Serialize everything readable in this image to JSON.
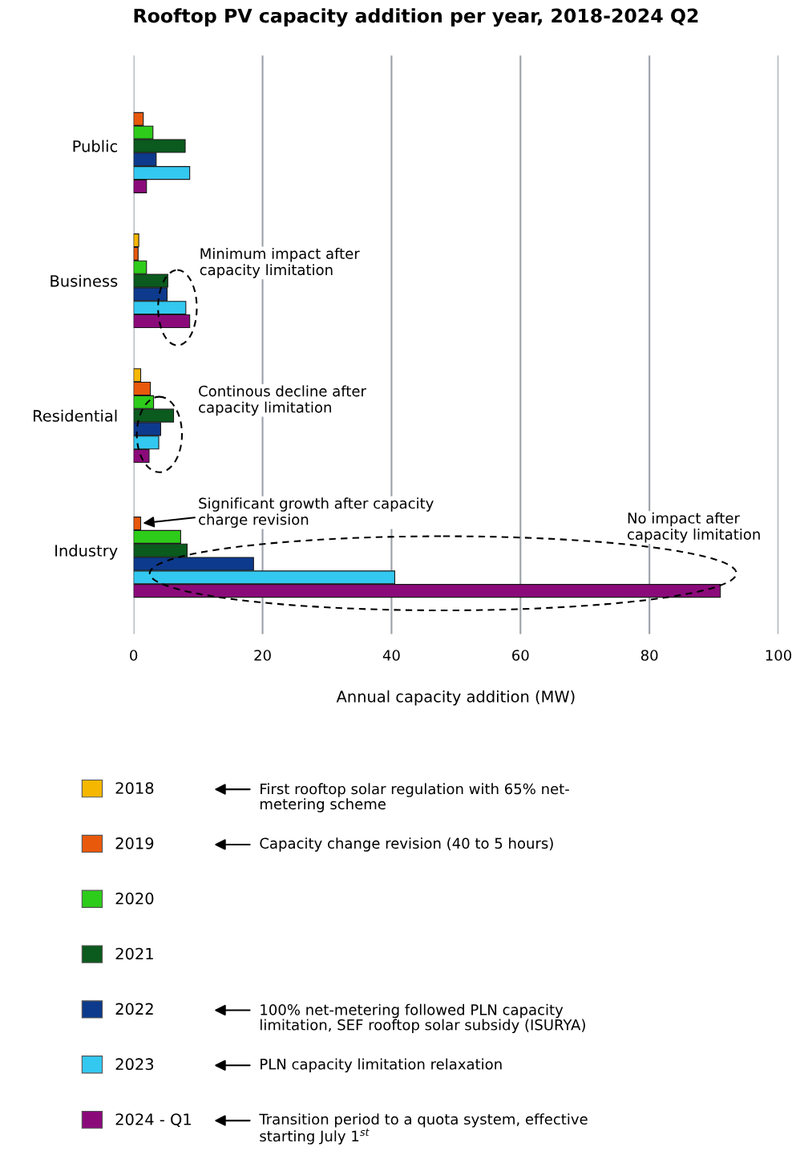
{
  "chart_data": {
    "type": "bar",
    "orientation": "horizontal",
    "title": "Rooftop PV capacity addition per year, 2018-2024 Q2",
    "xlabel": "Annual capacity addition (MW)",
    "categories": [
      "Public",
      "Business",
      "Residential",
      "Industry"
    ],
    "series": [
      {
        "name": "2018",
        "color": "#f5b700",
        "values": [
          null,
          0.8,
          1.1,
          null
        ]
      },
      {
        "name": "2019",
        "color": "#e8590c",
        "values": [
          1.5,
          0.7,
          2.6,
          1.1
        ]
      },
      {
        "name": "2020",
        "color": "#2ecc1a",
        "values": [
          3.0,
          2.0,
          3.1,
          7.3
        ]
      },
      {
        "name": "2021",
        "color": "#0b5a1e",
        "values": [
          8.0,
          5.3,
          6.2,
          8.3
        ]
      },
      {
        "name": "2022",
        "color": "#0d3a8c",
        "values": [
          3.5,
          5.2,
          4.2,
          18.6
        ]
      },
      {
        "name": "2023",
        "color": "#33c8f0",
        "values": [
          8.7,
          8.1,
          3.9,
          40.5
        ]
      },
      {
        "name": "2024 - Q1",
        "color": "#8b0a7a",
        "values": [
          2.0,
          8.7,
          2.4,
          91.0
        ]
      }
    ],
    "xlim": [
      0,
      100
    ],
    "xticks": [
      0,
      20,
      40,
      60,
      80,
      100
    ],
    "grid": "x",
    "legend": "bottom",
    "annotations": [
      "Minimum impact after\ncapacity limitation",
      "Continous decline after\ncapacity limitation",
      "Significant growth after capacity\ncharge revision",
      "No impact after\ncapacity limitation",
      "First rooftop solar regulation with 65% net-\nmetering scheme",
      "Capacity change revision (40 to 5 hours)",
      "100% net-metering followed PLN capacity\nlimitation, SEF rooftop solar subsidy (ISURYA)",
      "PLN capacity limitation relaxation",
      "Transition period to a quota system, effective\nstarting July 1$^{st}$"
    ]
  }
}
